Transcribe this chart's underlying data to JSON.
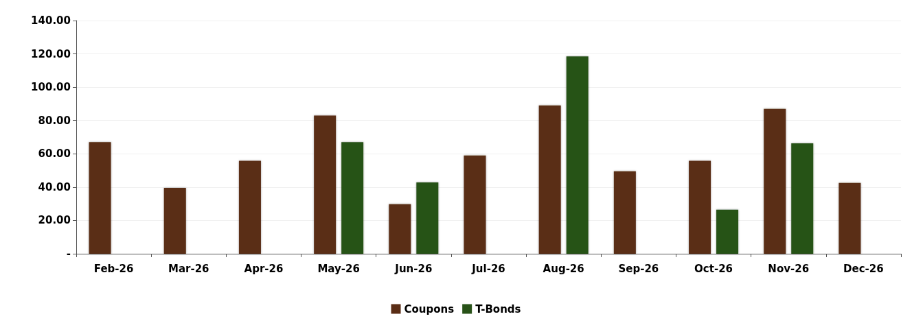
{
  "chart_data": {
    "type": "bar",
    "categories": [
      "Feb-26",
      "Mar-26",
      "Apr-26",
      "May-26",
      "Jun-26",
      "Jul-26",
      "Aug-26",
      "Sep-26",
      "Oct-26",
      "Nov-26",
      "Dec-26"
    ],
    "series": [
      {
        "name": "Coupons",
        "color": "#5a2d15",
        "values": [
          67,
          39.5,
          55.8,
          83,
          29.8,
          59,
          89,
          49.5,
          55.8,
          87,
          42.5
        ]
      },
      {
        "name": "T-Bonds",
        "color": "#285218",
        "values": [
          null,
          null,
          null,
          67,
          42.8,
          null,
          118.5,
          null,
          26.5,
          66.3,
          null
        ]
      }
    ],
    "ylim": [
      0,
      140
    ],
    "yticks": [
      {
        "value": 0,
        "label": "-"
      },
      {
        "value": 20,
        "label": "20.00"
      },
      {
        "value": 40,
        "label": "40.00"
      },
      {
        "value": 60,
        "label": "60.00"
      },
      {
        "value": 80,
        "label": "80.00"
      },
      {
        "value": 100,
        "label": "100.00"
      },
      {
        "value": 120,
        "label": "120.00"
      },
      {
        "value": 140,
        "label": "140.00"
      }
    ],
    "grid": "y",
    "legend": "bottom"
  }
}
